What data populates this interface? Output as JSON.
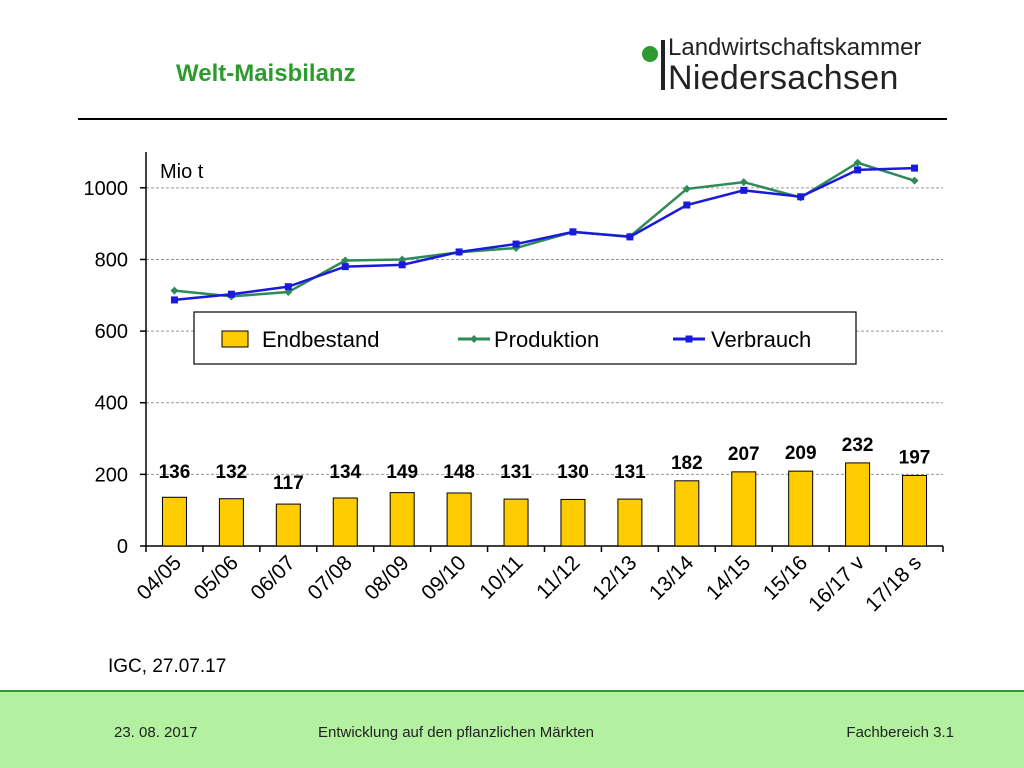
{
  "title": "Welt-Maisbilanz",
  "logo": {
    "line1": "Landwirtschaftskammer",
    "line2": "Niedersachsen"
  },
  "source": "IGC, 27.07.17",
  "footer": {
    "date": "23. 08. 2017",
    "center": "Entwicklung auf den pflanzlichen Märkten",
    "right": "Fachbereich 3.1"
  },
  "colors": {
    "accent": "#2e9b2e",
    "bar": "#ffcc00",
    "produktion": "#2e8b57",
    "verbrauch": "#1a1adc",
    "footer_bg": "#b3f0a0"
  },
  "chart_data": {
    "type": "bar",
    "categories": [
      "04/05",
      "05/06",
      "06/07",
      "07/08",
      "08/09",
      "09/10",
      "10/11",
      "11/12",
      "12/13",
      "13/14",
      "14/15",
      "15/16",
      "16/17 v",
      "17/18 s"
    ],
    "unit_label": "Mio t",
    "ylim": [
      0,
      1100
    ],
    "yticks": [
      0,
      200,
      400,
      600,
      800,
      1000
    ],
    "grid": true,
    "legend_position": "center",
    "series": [
      {
        "name": "Endbestand",
        "type": "bar",
        "values": [
          136,
          132,
          117,
          134,
          149,
          148,
          131,
          130,
          131,
          182,
          207,
          209,
          232,
          197
        ]
      },
      {
        "name": "Produktion",
        "type": "line",
        "values": [
          713,
          697,
          709,
          797,
          800,
          820,
          832,
          877,
          864,
          997,
          1016,
          973,
          1070,
          1020
        ]
      },
      {
        "name": "Verbrauch",
        "type": "line",
        "values": [
          687,
          703,
          724,
          780,
          785,
          821,
          843,
          877,
          863,
          952,
          993,
          975,
          1050,
          1055
        ]
      }
    ]
  }
}
